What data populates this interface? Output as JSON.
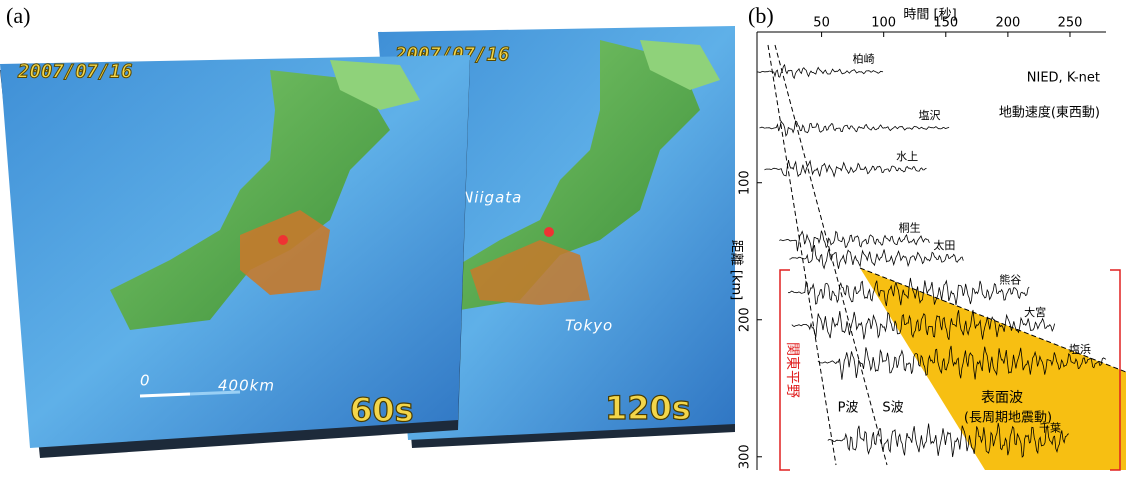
{
  "panel_a": {
    "label": "(a)",
    "maps": [
      {
        "date": "2007/07/16",
        "time": "60s",
        "scale_start": "0",
        "scale_end": "400km"
      },
      {
        "date": "2007/07/16",
        "time": "120s",
        "cities": [
          "Niigata",
          "Tokyo"
        ]
      }
    ]
  },
  "panel_b": {
    "type": "seismogram",
    "label": "(b)",
    "x_label": "時間 [秒]",
    "xlim": [
      -2,
      279
    ],
    "xticks": [
      50,
      100,
      150,
      200,
      250
    ],
    "y_label": "距離 [km]",
    "ylim": [
      -10,
      306
    ],
    "yticks": [
      100,
      200,
      300
    ],
    "source": "NIED, K-net",
    "quantity": "地動速度(東西動)",
    "stations": [
      {
        "name": "柏崎",
        "distance": 19,
        "t_start": -2,
        "t_end": 100
      },
      {
        "name": "塩沢",
        "distance": 60,
        "t_start": 0,
        "t_end": 153
      },
      {
        "name": "水上",
        "distance": 90,
        "t_start": 4,
        "t_end": 135
      },
      {
        "name": "桐生",
        "distance": 142,
        "t_start": 16,
        "t_end": 137
      },
      {
        "name": "太田",
        "distance": 155,
        "t_start": 24,
        "t_end": 165
      },
      {
        "name": "熊谷",
        "distance": 180,
        "t_start": 23,
        "t_end": 218
      },
      {
        "name": "大宮",
        "distance": 204,
        "t_start": 26,
        "t_end": 238
      },
      {
        "name": "塩浜",
        "distance": 231,
        "t_start": 47,
        "t_end": 279
      },
      {
        "name": "千葉",
        "distance": 288,
        "t_start": 55,
        "t_end": 250
      }
    ],
    "region": "関東平野",
    "p_wave": "P波",
    "s_wave": "S波",
    "surface_wave": "表面波",
    "surface_wave_note": "(長周期地震動)"
  }
}
